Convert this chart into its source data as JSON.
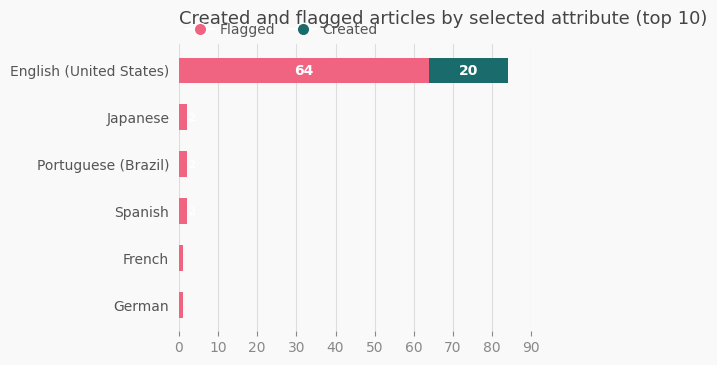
{
  "title": "Created and flagged articles by selected attribute (top 10)",
  "categories": [
    "German",
    "French",
    "Spanish",
    "Portuguese (Brazil)",
    "Japanese",
    "English (United States)"
  ],
  "flagged": [
    1,
    1,
    2,
    2,
    2,
    64
  ],
  "created": [
    0,
    0,
    0,
    0,
    0,
    20
  ],
  "flagged_color": "#F06482",
  "created_color": "#1A6B6B",
  "xlim": [
    0,
    90
  ],
  "xticks": [
    0,
    10,
    20,
    30,
    40,
    50,
    60,
    70,
    80,
    90
  ],
  "bar_height": 0.55,
  "background_color": "#f9f9f9",
  "legend_flagged_label": "Flagged",
  "legend_created_label": "Created",
  "title_fontsize": 13,
  "tick_fontsize": 10,
  "label_fontsize": 10
}
